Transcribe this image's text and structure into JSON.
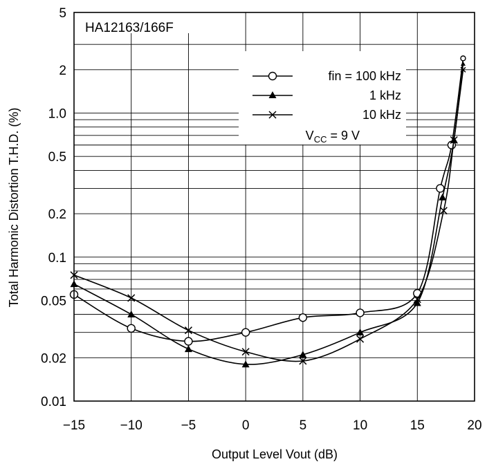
{
  "chart_data": {
    "type": "line",
    "title": "HA12163/166F",
    "xlabel": "Output Level Vout  (dB)",
    "ylabel": "Total Harmonic Distortion T.H.D.  (%)",
    "xlim": [
      -15,
      20
    ],
    "ylim": [
      0.01,
      5
    ],
    "y_scale": "log",
    "grid": true,
    "x_ticks": [
      -15,
      -10,
      -5,
      0,
      5,
      10,
      15,
      20
    ],
    "x_tick_labels": [
      "−15",
      "−10",
      "−5",
      "0",
      "5",
      "10",
      "15",
      "20"
    ],
    "y_ticks": [
      0.01,
      0.02,
      0.05,
      0.1,
      0.2,
      0.5,
      1.0,
      2,
      5
    ],
    "y_tick_labels": [
      "0.01",
      "0.02",
      "0.05",
      "0.1",
      "0.2",
      "0.5",
      "1.0",
      "2",
      "5"
    ],
    "legend_position": "top-right",
    "series": [
      {
        "name": "fin = 100 kHz",
        "marker": "circle-open",
        "x": [
          -15,
          -10,
          -5,
          0,
          5,
          10,
          15,
          17,
          18,
          19
        ],
        "y": [
          0.055,
          0.032,
          0.026,
          0.03,
          0.038,
          0.041,
          0.056,
          0.3,
          0.6,
          2.4
        ]
      },
      {
        "name": "1 kHz",
        "marker": "triangle-filled",
        "x": [
          -15,
          -10,
          -5,
          0,
          5,
          10,
          15,
          17.2,
          18.2,
          19
        ],
        "y": [
          0.065,
          0.04,
          0.023,
          0.018,
          0.021,
          0.03,
          0.048,
          0.26,
          0.65,
          2.2
        ]
      },
      {
        "name": "10 kHz",
        "marker": "cross",
        "x": [
          -15,
          -10,
          -5,
          0,
          5,
          10,
          15,
          17.3,
          18.2,
          19
        ],
        "y": [
          0.075,
          0.052,
          0.031,
          0.022,
          0.019,
          0.027,
          0.051,
          0.21,
          0.65,
          2.0
        ]
      }
    ],
    "annotation": "V_CC = 9 V"
  },
  "legend": {
    "entries": [
      "fin = 100 kHz",
      "1 kHz",
      "10 kHz"
    ],
    "vcc_prefix": "V",
    "vcc_sub": "CC",
    "vcc_suffix": " = 9 V"
  }
}
